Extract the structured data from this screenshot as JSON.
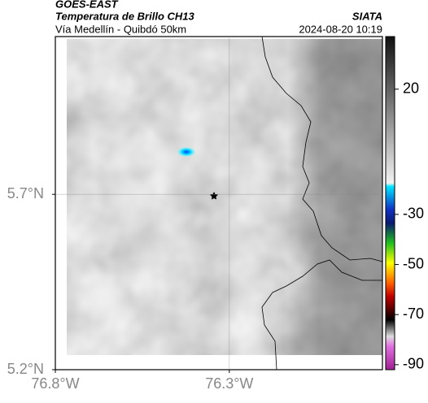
{
  "header": {
    "satellite": "GOES-EAST",
    "product": "Temperatura de Brillo CH13",
    "region": "Vía Medellín - Quibdó 50km",
    "agency": "SIATA",
    "datetime": "2024-08-20 10:19"
  },
  "map": {
    "xlim": [
      -76.8,
      -75.86
    ],
    "ylim": [
      5.2,
      6.15
    ],
    "xticks": [
      {
        "value": -76.8,
        "label": "76.8°W"
      },
      {
        "value": -76.3,
        "label": "76.3°W"
      }
    ],
    "yticks": [
      {
        "value": 5.2,
        "label": "5.2°N"
      },
      {
        "value": 5.7,
        "label": "5.7°N"
      }
    ],
    "grid": true
  },
  "colorbar": {
    "lim": [
      41,
      -92
    ],
    "ticks": [
      20,
      -30,
      -50,
      -70,
      -90
    ]
  }
}
